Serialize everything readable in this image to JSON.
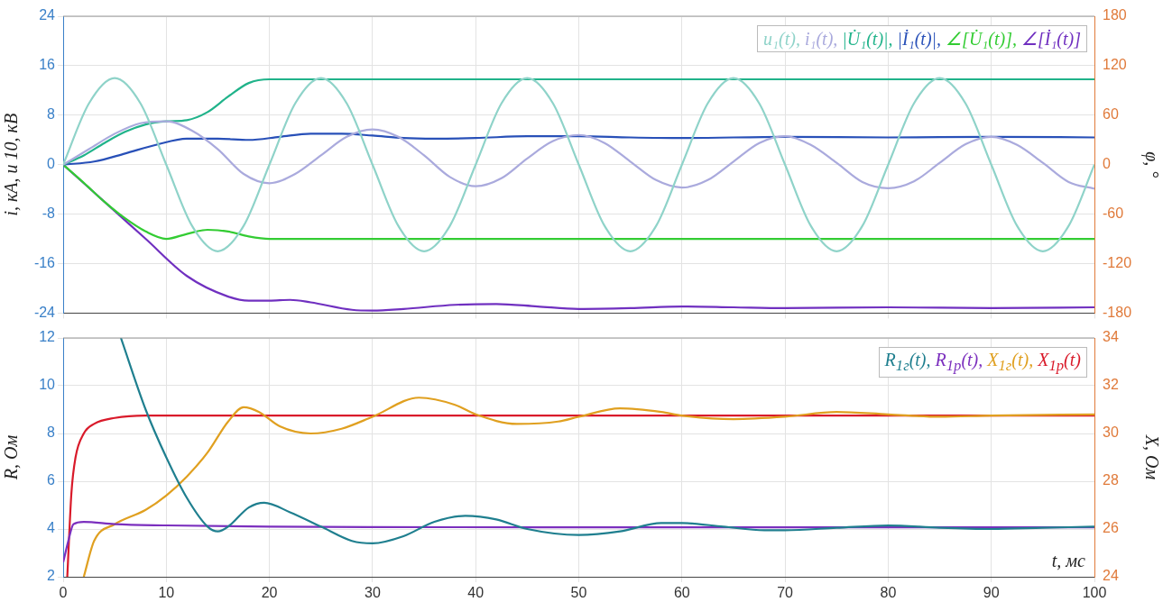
{
  "chart_data": [
    {
      "type": "line",
      "ylabel": "i, кА, u 10, кВ",
      "y2label": "φ, °",
      "xlim": [
        0,
        100
      ],
      "xticks": [
        0,
        10,
        20,
        30,
        40,
        50,
        60,
        70,
        80,
        90,
        100
      ],
      "ylim": [
        -24,
        24
      ],
      "yticks": [
        -24,
        -16,
        -8,
        0,
        8,
        16,
        24
      ],
      "y2lim": [
        -180,
        180
      ],
      "y2ticks": [
        -180,
        -120,
        -60,
        0,
        60,
        120,
        180
      ],
      "grid": true,
      "legend": "top right",
      "tick_labels": "y",
      "series": [
        {
          "name": "u₁(t),",
          "color": "#8fd3c9",
          "x": [
            0,
            2.5,
            5,
            7.5,
            10,
            12.5,
            15,
            17.5,
            20,
            22.5,
            25,
            27.5,
            30,
            32.5,
            35,
            37.5,
            40,
            42.5,
            45,
            47.5,
            50,
            52.5,
            55,
            57.5,
            60,
            62.5,
            65,
            67.5,
            70,
            72.5,
            75,
            77.5,
            80,
            82.5,
            85,
            87.5,
            90,
            92.5,
            95,
            97.5,
            100
          ],
          "values": [
            0,
            9.9,
            14,
            9.9,
            0,
            -9.9,
            -14,
            -9.9,
            0,
            9.9,
            14,
            9.9,
            0,
            -9.9,
            -14,
            -9.9,
            0,
            9.9,
            14,
            9.9,
            0,
            -9.9,
            -14,
            -9.9,
            0,
            9.9,
            14,
            9.9,
            0,
            -9.9,
            -14,
            -9.9,
            0,
            9.9,
            14,
            9.9,
            0,
            -9.9,
            -14,
            -9.9,
            0
          ]
        },
        {
          "name": "i₁(t),",
          "color": "#aaaadd",
          "x": [
            0,
            2.5,
            5,
            7.5,
            10,
            12.5,
            15,
            17.5,
            20,
            22.5,
            25,
            27.5,
            30,
            32.5,
            35,
            37.5,
            40,
            42.5,
            45,
            47.5,
            50,
            52.5,
            55,
            57.5,
            60,
            62.5,
            65,
            67.5,
            70,
            72.5,
            75,
            77.5,
            80,
            82.5,
            85,
            87.5,
            90,
            92.5,
            95,
            97.5,
            100
          ],
          "values": [
            0,
            2.5,
            5,
            6.7,
            7,
            5.5,
            2.5,
            -1.5,
            -3,
            -1.5,
            1.5,
            4.5,
            5.7,
            4.5,
            1.5,
            -2,
            -3.5,
            -2.2,
            1,
            3.8,
            4.8,
            3.5,
            0.5,
            -2.5,
            -3.7,
            -2.5,
            0.5,
            3.5,
            4.6,
            3.2,
            0.3,
            -2.8,
            -3.8,
            -2.7,
            0.3,
            3.3,
            4.5,
            3.2,
            0.3,
            -2.8,
            -3.9
          ]
        },
        {
          "name": "|U̇₁(t)|,",
          "color": "#20b38a",
          "x": [
            0,
            2,
            4,
            6,
            8,
            10,
            12,
            14,
            16,
            18,
            20,
            100
          ],
          "values": [
            0,
            1.5,
            3.5,
            5.3,
            6.5,
            7,
            7.2,
            8.5,
            11,
            13.2,
            13.8,
            13.8
          ]
        },
        {
          "name": "|İ₁(t)|,",
          "color": "#2850b8",
          "x": [
            0,
            3,
            6,
            9,
            12,
            15,
            18,
            21,
            24,
            27,
            30,
            33,
            36,
            40,
            45,
            50,
            55,
            60,
            70,
            80,
            90,
            100
          ],
          "values": [
            0,
            0.5,
            1.8,
            3.2,
            4.2,
            4.2,
            4,
            4.5,
            5,
            5,
            4.7,
            4.3,
            4.2,
            4.3,
            4.6,
            4.6,
            4.4,
            4.3,
            4.5,
            4.4,
            4.5,
            4.4
          ]
        },
        {
          "name": "∠[U̇₁(t)],",
          "color": "#33cc33",
          "axis": "y2",
          "x": [
            0,
            2,
            4,
            6,
            8,
            10,
            12,
            14,
            16,
            18,
            20,
            100
          ],
          "values": [
            0,
            -22,
            -45,
            -65,
            -81,
            -90,
            -84,
            -79,
            -81,
            -87,
            -90,
            -90
          ]
        },
        {
          "name": "∠[İ₁(t)]",
          "color": "#7030c0",
          "axis": "y2",
          "x": [
            0,
            4,
            8,
            12,
            16,
            18,
            20,
            22,
            24,
            28,
            30,
            33,
            38,
            42,
            46,
            50,
            55,
            60,
            65,
            70,
            80,
            90,
            100
          ],
          "values": [
            0,
            -45,
            -90,
            -135,
            -160,
            -165,
            -165,
            -164,
            -167,
            -176,
            -177,
            -175,
            -170,
            -169,
            -172,
            -175,
            -174,
            -172,
            -173,
            -174,
            -173,
            -174,
            -173
          ]
        }
      ]
    },
    {
      "type": "line",
      "xlabel": "t, мс",
      "ylabel": "R, Ом",
      "y2label": "X, Ом",
      "xlim": [
        0,
        100
      ],
      "xticks": [
        0,
        10,
        20,
        30,
        40,
        50,
        60,
        70,
        80,
        90,
        100
      ],
      "ylim": [
        2,
        12
      ],
      "yticks": [
        2,
        4,
        6,
        8,
        10,
        12
      ],
      "y2lim": [
        24,
        34
      ],
      "y2ticks": [
        24,
        26,
        28,
        30,
        32,
        34
      ],
      "grid": true,
      "legend": "top right",
      "series": [
        {
          "name": "R$_{1г}$(t),",
          "color": "#1f7f8f",
          "x": [
            5.6,
            8,
            10,
            12,
            14,
            15,
            16,
            18,
            19.5,
            22,
            25,
            28,
            30,
            33,
            36,
            39,
            42,
            45,
            50,
            54,
            58,
            60,
            64,
            68,
            70,
            75,
            80,
            85,
            90,
            95,
            100
          ],
          "values": [
            12,
            9,
            7,
            5.3,
            4.1,
            3.9,
            4.1,
            4.9,
            5.1,
            4.7,
            4.1,
            3.5,
            3.4,
            3.7,
            4.3,
            4.55,
            4.4,
            4,
            3.75,
            3.9,
            4.25,
            4.25,
            4.1,
            3.95,
            3.95,
            4.05,
            4.15,
            4.05,
            4,
            4.05,
            4.1
          ]
        },
        {
          "name": "R$_{1р}$(t),",
          "color": "#7b2fbe",
          "x": [
            0,
            0.5,
            1,
            2,
            5,
            10,
            20,
            30,
            50,
            100
          ],
          "values": [
            2.6,
            3.5,
            4.2,
            4.3,
            4.2,
            4.15,
            4.1,
            4.08,
            4.07,
            4.07
          ]
        },
        {
          "name": "X$_{1г}$(t),",
          "color": "#e0a020",
          "axis": "y2",
          "x": [
            2,
            3,
            5,
            8,
            10,
            12,
            14,
            16,
            17.5,
            19,
            21,
            24,
            27,
            30,
            34.5,
            38,
            40,
            44,
            48,
            50,
            54,
            58,
            60,
            65,
            70,
            75,
            80,
            85,
            90,
            100
          ],
          "values": [
            24,
            25.5,
            26.2,
            26.8,
            27.4,
            28.2,
            29.2,
            30.5,
            31.1,
            30.9,
            30.3,
            30,
            30.2,
            30.7,
            31.5,
            31.2,
            30.8,
            30.4,
            30.5,
            30.7,
            31.05,
            30.9,
            30.75,
            30.6,
            30.7,
            30.9,
            30.8,
            30.7,
            30.75,
            30.8
          ]
        },
        {
          "name": "X$_{1р}$(t)",
          "color": "#d91a2a",
          "axis": "y2",
          "x": [
            0.4,
            0.8,
            1.2,
            2,
            3,
            5,
            8,
            100
          ],
          "values": [
            24,
            27.5,
            29,
            30,
            30.4,
            30.65,
            30.75,
            30.75
          ]
        }
      ]
    }
  ]
}
